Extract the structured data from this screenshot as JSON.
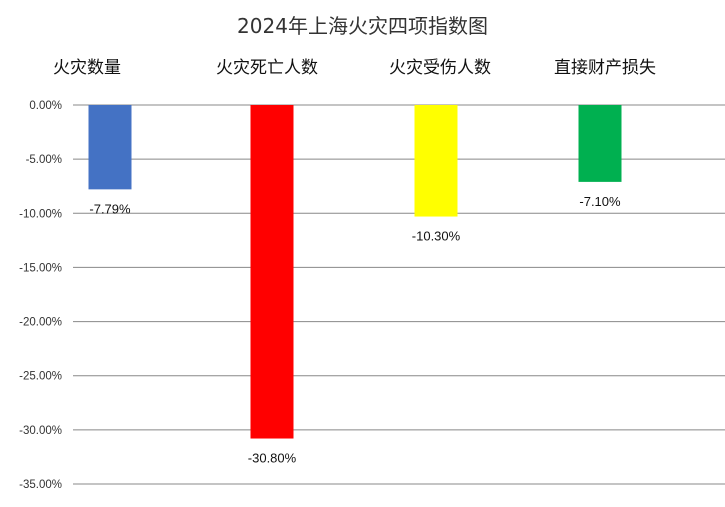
{
  "chart_data": {
    "type": "bar",
    "title": "2024年上海火灾四项指数图",
    "categories": [
      "火灾数量",
      "火灾死亡人数",
      "火灾受伤人数",
      "直接财产损失"
    ],
    "values": [
      -7.79,
      -30.8,
      -10.3,
      -7.1
    ],
    "value_labels": [
      "-7.79%",
      "-30.80%",
      "-10.30%",
      "-7.10%"
    ],
    "colors": [
      "#4472C4",
      "#FF0000",
      "#FFFF00",
      "#00B050"
    ],
    "y_ticks": [
      "0.00%",
      "-5.00%",
      "-10.00%",
      "-15.00%",
      "-20.00%",
      "-25.00%",
      "-30.00%",
      "-35.00%"
    ],
    "ylim": [
      -35,
      0
    ],
    "grid": true,
    "xlabel": "",
    "ylabel": ""
  }
}
